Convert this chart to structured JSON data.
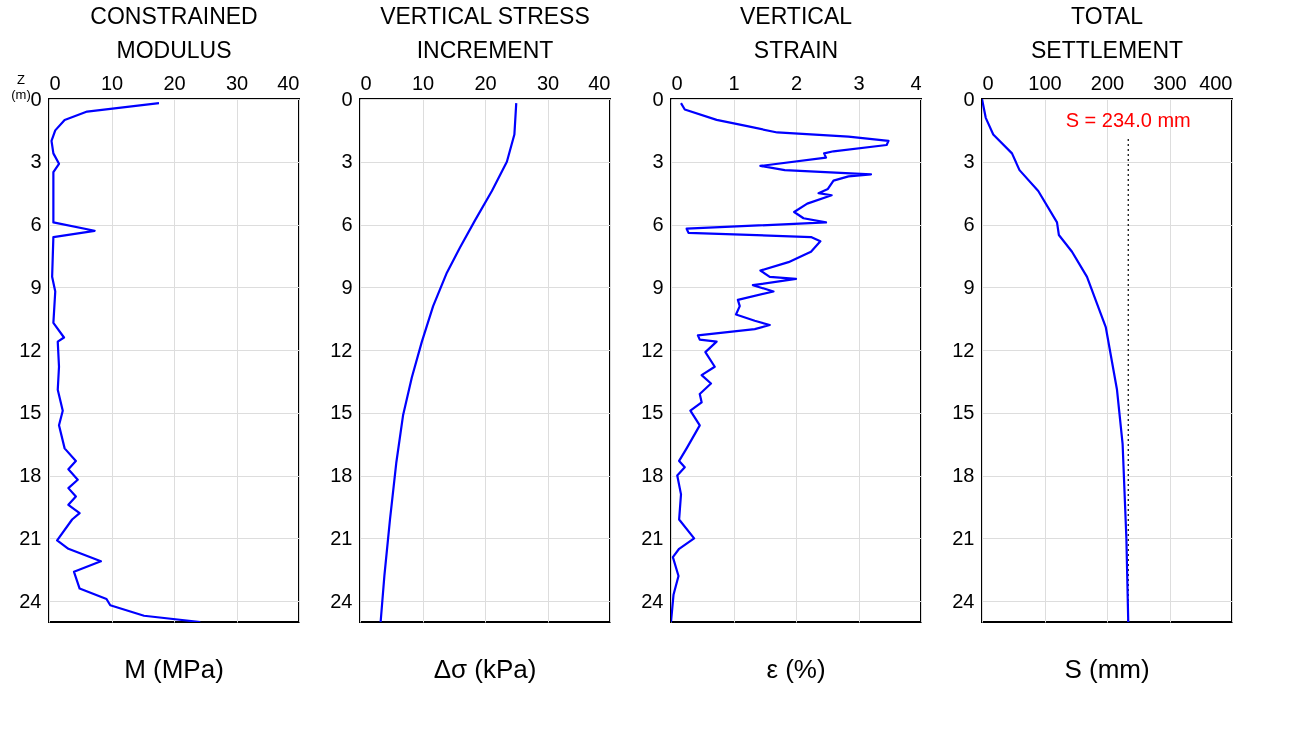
{
  "chart_data": [
    {
      "type": "line",
      "orientation": "horizontal",
      "title": "CONSTRAINED\nMODULUS",
      "xlabel": "M (MPa)",
      "ylabel": "Z\n(m)",
      "xlim": [
        0,
        40
      ],
      "xticks": [
        0,
        10,
        20,
        30,
        40
      ],
      "ylim": [
        25,
        0
      ],
      "yticks": [
        0,
        3,
        6,
        9,
        12,
        15,
        18,
        21,
        24
      ],
      "grid": true,
      "series": [
        {
          "color": "#0000ff",
          "x": [
            0.2,
            0.6,
            1.0,
            1.5,
            2.0,
            2.6,
            3.1,
            3.5,
            5.9,
            6.3,
            6.6,
            8.5,
            9.2,
            10.7,
            11.4,
            11.6,
            12.8,
            13.9,
            14.9,
            15.6,
            16.7,
            17.3,
            17.7,
            18.2,
            18.6,
            19.0,
            19.4,
            19.8,
            20.1,
            21.1,
            21.5,
            22.1,
            22.6,
            23.4,
            23.9,
            24.2,
            24.7,
            25.0
          ],
          "values": [
            17.6,
            6.1,
            2.5,
            1.0,
            0.4,
            0.7,
            1.6,
            0.7,
            0.7,
            7.3,
            0.7,
            0.5,
            1.0,
            0.7,
            2.4,
            1.4,
            1.6,
            1.4,
            2.2,
            1.6,
            2.5,
            4.3,
            3.1,
            4.6,
            3.1,
            4.3,
            3.1,
            4.9,
            3.7,
            1.3,
            3.1,
            8.3,
            4.0,
            4.9,
            9.2,
            9.8,
            15.2,
            24.2
          ]
        }
      ]
    },
    {
      "type": "line",
      "orientation": "horizontal",
      "title": "VERTICAL STRESS\nINCREMENT",
      "xlabel": "Δσ (kPa)",
      "xlim": [
        0,
        40
      ],
      "xticks": [
        0,
        10,
        20,
        30,
        40
      ],
      "ylim": [
        25,
        0
      ],
      "yticks": [
        0,
        3,
        6,
        9,
        12,
        15,
        18,
        21,
        24
      ],
      "grid": true,
      "series": [
        {
          "color": "#0000ff",
          "x": [
            0.2,
            1.7,
            3.0,
            4.4,
            5.8,
            7.1,
            8.3,
            9.9,
            11.6,
            13.3,
            15.1,
            17.4,
            20.1,
            22.8,
            25.0
          ],
          "values": [
            25.0,
            24.7,
            23.5,
            21.1,
            18.4,
            16.0,
            13.9,
            11.7,
            9.9,
            8.3,
            6.9,
            5.8,
            4.8,
            3.9,
            3.3
          ]
        }
      ]
    },
    {
      "type": "line",
      "orientation": "horizontal",
      "title": "VERTICAL\nSTRAIN",
      "xlabel": "ε (%)",
      "xlim": [
        0,
        4
      ],
      "xticks": [
        0,
        1,
        2,
        3,
        4
      ],
      "ylim": [
        25,
        0
      ],
      "yticks": [
        0,
        3,
        6,
        9,
        12,
        15,
        18,
        21,
        24
      ],
      "grid": true,
      "series": [
        {
          "color": "#0000ff",
          "x": [
            0.2,
            0.5,
            1.0,
            1.3,
            1.6,
            1.8,
            2.0,
            2.2,
            2.5,
            2.6,
            2.8,
            3.2,
            3.4,
            3.6,
            3.7,
            3.9,
            4.3,
            4.5,
            4.6,
            5.0,
            5.4,
            5.7,
            5.9,
            6.2,
            6.4,
            6.6,
            6.8,
            7.3,
            7.8,
            8.2,
            8.5,
            8.6,
            8.9,
            9.2,
            9.6,
            9.9,
            10.3,
            10.6,
            10.8,
            11.0,
            11.3,
            11.5,
            11.6,
            12.1,
            12.8,
            13.2,
            13.6,
            14.1,
            14.5,
            14.9,
            15.6,
            16.7,
            17.3,
            17.6,
            18.0,
            18.9,
            20.1,
            21.0,
            21.5,
            21.9,
            22.8,
            23.7,
            25.0
          ],
          "values": [
            0.16,
            0.22,
            0.73,
            1.22,
            1.7,
            2.84,
            3.48,
            3.45,
            2.6,
            2.45,
            2.48,
            1.43,
            1.82,
            3.2,
            2.84,
            2.6,
            2.51,
            2.36,
            2.57,
            2.18,
            1.97,
            2.12,
            2.48,
            0.25,
            0.28,
            2.24,
            2.39,
            2.24,
            1.88,
            1.43,
            1.58,
            2.0,
            1.31,
            1.64,
            1.07,
            1.1,
            1.04,
            1.34,
            1.58,
            1.34,
            0.43,
            0.46,
            0.73,
            0.55,
            0.7,
            0.49,
            0.64,
            0.46,
            0.49,
            0.31,
            0.46,
            0.25,
            0.13,
            0.22,
            0.1,
            0.16,
            0.13,
            0.37,
            0.13,
            0.03,
            0.12,
            0.04,
            0.0
          ]
        }
      ]
    },
    {
      "type": "line",
      "orientation": "horizontal",
      "title": "TOTAL\nSETTLEMENT",
      "xlabel": "S (mm)",
      "xlim": [
        0,
        400
      ],
      "xticks": [
        0,
        100,
        200,
        300,
        400
      ],
      "ylim": [
        25,
        0
      ],
      "yticks": [
        0,
        3,
        6,
        9,
        12,
        15,
        18,
        21,
        24
      ],
      "grid": true,
      "series": [
        {
          "color": "#0000ff",
          "x": [
            0,
            0.9,
            1.7,
            2.6,
            3.4,
            4.4,
            5.9,
            6.5,
            7.3,
            8.5,
            10.9,
            13.9,
            16.5,
            21.0,
            25.0
          ],
          "values": [
            0,
            6,
            18,
            48,
            60,
            90,
            120,
            123,
            144,
            168,
            198,
            216,
            225,
            231,
            234
          ]
        }
      ],
      "ref_lines": [
        {
          "axis": "x",
          "value": 234,
          "label": "S = 234.0 mm",
          "color": "#000000",
          "line_style": "dotted"
        }
      ]
    }
  ]
}
